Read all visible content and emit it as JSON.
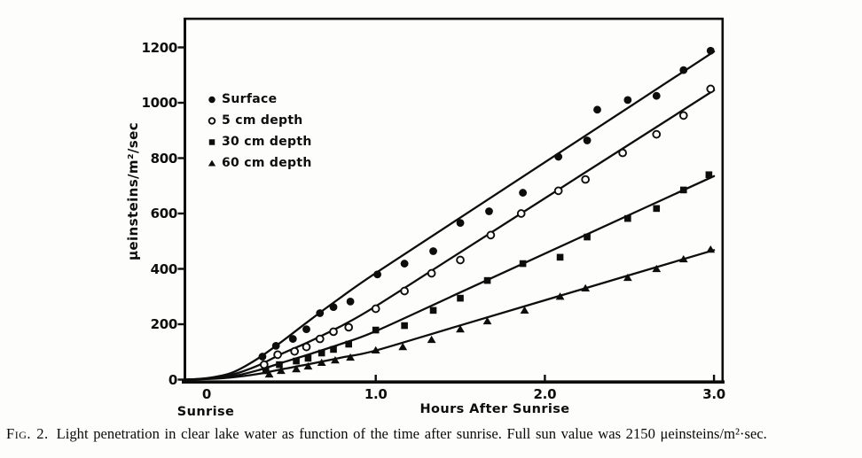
{
  "figure": {
    "caption_label": "Fig. 2.",
    "caption_text": "Light penetration in clear lake water as function of the time after sunrise. Full sun value was 2150 μeinsteins/m²·sec."
  },
  "chart_data": {
    "type": "scatter",
    "title": "",
    "xlabel": "Hours After Sunrise",
    "ylabel": "μeinsteins/m²/sec",
    "x_origin_label": "Sunrise",
    "xlim": [
      -0.15,
      3.05
    ],
    "ylim": [
      0,
      1300
    ],
    "grid": false,
    "legend_position": "upper-left-inside",
    "ink_color": "#0d0d0d",
    "x_ticks": [
      {
        "value": 0.0,
        "label": "0",
        "mark": false
      },
      {
        "value": 1.0,
        "label": "1.0",
        "mark": true
      },
      {
        "value": 2.0,
        "label": "2.0",
        "mark": true
      },
      {
        "value": 3.0,
        "label": "3.0",
        "mark": true
      }
    ],
    "y_ticks": [
      0,
      200,
      400,
      600,
      800,
      1000,
      1200
    ],
    "series": [
      {
        "name": "Surface",
        "marker": "filled-circle",
        "points": [
          [
            0.33,
            83
          ],
          [
            0.41,
            122
          ],
          [
            0.51,
            147
          ],
          [
            0.59,
            182
          ],
          [
            0.67,
            240
          ],
          [
            0.75,
            262
          ],
          [
            0.85,
            282
          ],
          [
            1.01,
            380
          ],
          [
            1.17,
            419
          ],
          [
            1.34,
            464
          ],
          [
            1.5,
            566
          ],
          [
            1.67,
            608
          ],
          [
            1.87,
            675
          ],
          [
            2.08,
            805
          ],
          [
            2.25,
            864
          ],
          [
            2.31,
            975
          ],
          [
            2.49,
            1010
          ],
          [
            2.66,
            1025
          ],
          [
            2.82,
            1118
          ],
          [
            2.98,
            1188
          ]
        ],
        "fit_line": [
          [
            -0.13,
            0
          ],
          [
            0,
            5
          ],
          [
            0.15,
            25
          ],
          [
            0.3,
            75
          ],
          [
            0.45,
            140
          ],
          [
            0.6,
            210
          ],
          [
            0.8,
            300
          ],
          [
            1.0,
            385
          ],
          [
            1.5,
            585
          ],
          [
            2.2,
            865
          ],
          [
            3.0,
            1185
          ]
        ]
      },
      {
        "name": "5 cm depth",
        "marker": "open-circle",
        "points": [
          [
            0.34,
            54
          ],
          [
            0.42,
            90
          ],
          [
            0.52,
            102
          ],
          [
            0.59,
            118
          ],
          [
            0.67,
            147
          ],
          [
            0.75,
            173
          ],
          [
            0.84,
            189
          ],
          [
            1.0,
            256
          ],
          [
            1.17,
            320
          ],
          [
            1.33,
            384
          ],
          [
            1.5,
            432
          ],
          [
            1.68,
            522
          ],
          [
            1.86,
            600
          ],
          [
            2.08,
            682
          ],
          [
            2.24,
            723
          ],
          [
            2.46,
            819
          ],
          [
            2.66,
            886
          ],
          [
            2.82,
            954
          ],
          [
            2.98,
            1050
          ]
        ],
        "fit_line": [
          [
            -0.13,
            0
          ],
          [
            0,
            4
          ],
          [
            0.15,
            18
          ],
          [
            0.3,
            50
          ],
          [
            0.45,
            95
          ],
          [
            0.6,
            135
          ],
          [
            0.8,
            195
          ],
          [
            1.0,
            265
          ],
          [
            1.5,
            460
          ],
          [
            2.2,
            733
          ],
          [
            3.0,
            1045
          ]
        ]
      },
      {
        "name": "30 cm depth",
        "marker": "filled-square",
        "points": [
          [
            0.35,
            32
          ],
          [
            0.43,
            54
          ],
          [
            0.53,
            67
          ],
          [
            0.6,
            77
          ],
          [
            0.68,
            96
          ],
          [
            0.75,
            109
          ],
          [
            0.84,
            128
          ],
          [
            1.0,
            179
          ],
          [
            1.17,
            195
          ],
          [
            1.34,
            250
          ],
          [
            1.5,
            294
          ],
          [
            1.66,
            358
          ],
          [
            1.87,
            419
          ],
          [
            2.09,
            442
          ],
          [
            2.25,
            515
          ],
          [
            2.49,
            582
          ],
          [
            2.66,
            618
          ],
          [
            2.82,
            685
          ],
          [
            2.97,
            740
          ]
        ],
        "fit_line": [
          [
            -0.13,
            0
          ],
          [
            0,
            3
          ],
          [
            0.15,
            12
          ],
          [
            0.3,
            33
          ],
          [
            0.45,
            62
          ],
          [
            0.6,
            90
          ],
          [
            0.8,
            130
          ],
          [
            1.0,
            175
          ],
          [
            1.5,
            315
          ],
          [
            2.2,
            511
          ],
          [
            3.0,
            735
          ]
        ]
      },
      {
        "name": "60 cm depth",
        "marker": "filled-triangle",
        "points": [
          [
            0.37,
            19
          ],
          [
            0.44,
            32
          ],
          [
            0.53,
            38
          ],
          [
            0.6,
            48
          ],
          [
            0.68,
            61
          ],
          [
            0.76,
            70
          ],
          [
            0.85,
            80
          ],
          [
            1.0,
            106
          ],
          [
            1.16,
            118
          ],
          [
            1.33,
            144
          ],
          [
            1.5,
            182
          ],
          [
            1.66,
            211
          ],
          [
            1.88,
            250
          ],
          [
            2.09,
            300
          ],
          [
            2.24,
            330
          ],
          [
            2.49,
            368
          ],
          [
            2.66,
            400
          ],
          [
            2.82,
            435
          ],
          [
            2.98,
            470
          ]
        ],
        "fit_line": [
          [
            -0.13,
            0
          ],
          [
            0,
            2
          ],
          [
            0.15,
            8
          ],
          [
            0.3,
            20
          ],
          [
            0.45,
            38
          ],
          [
            0.6,
            55
          ],
          [
            0.8,
            80
          ],
          [
            1.0,
            105
          ],
          [
            1.5,
            196
          ],
          [
            2.2,
            323
          ],
          [
            3.0,
            468
          ]
        ]
      }
    ]
  }
}
